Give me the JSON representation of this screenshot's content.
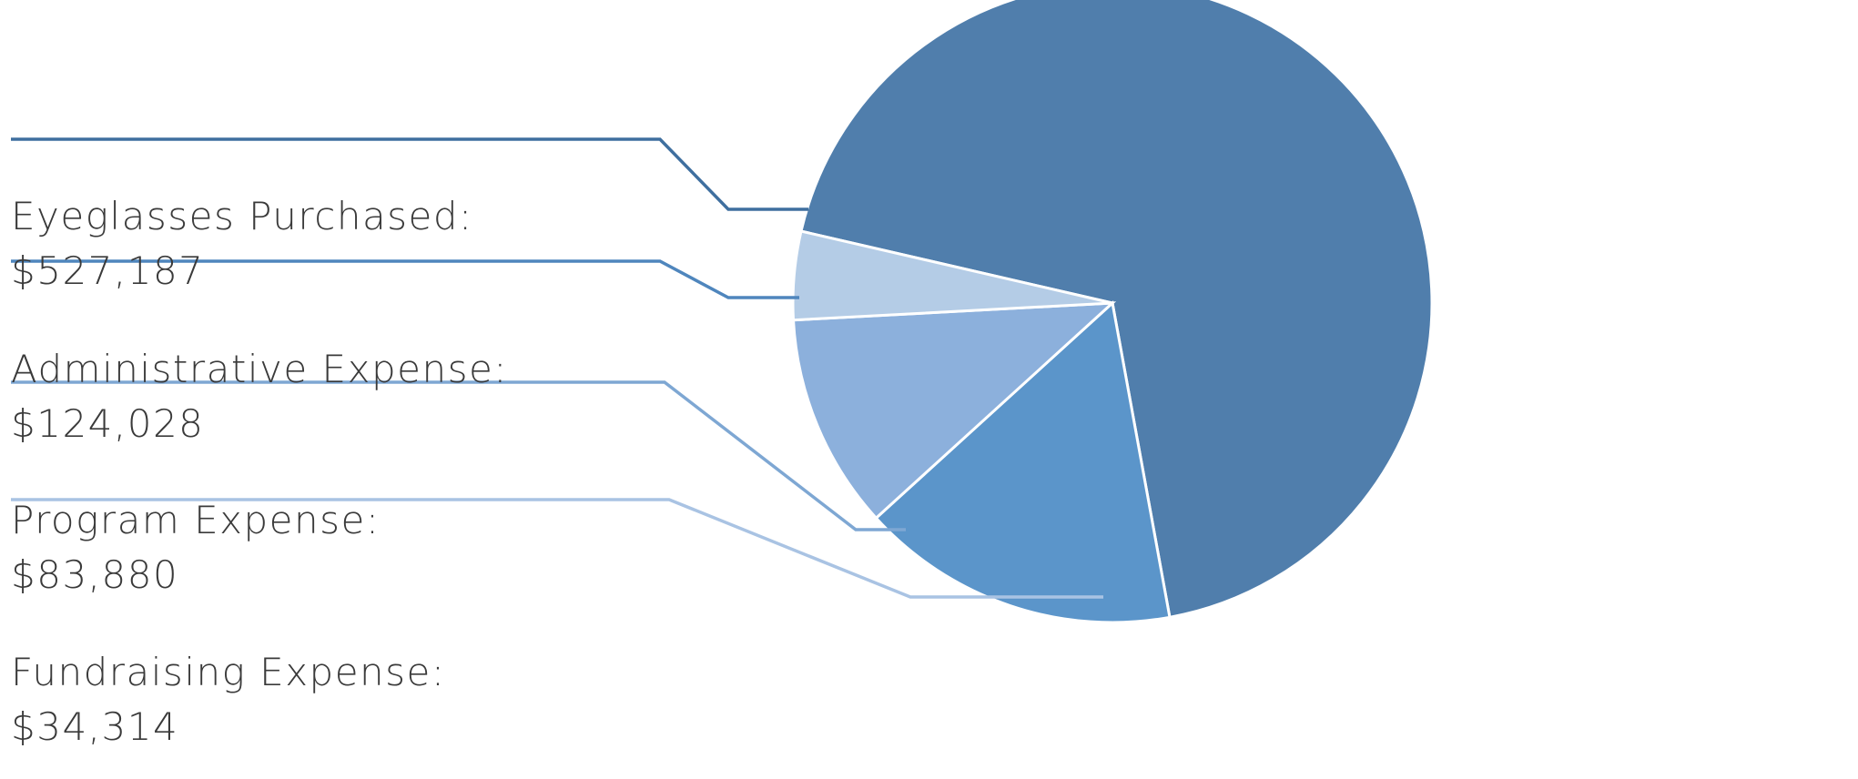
{
  "chart_data": {
    "type": "pie",
    "title": "",
    "slices": [
      {
        "label": "Eyeglasses Purchased:",
        "value_text": "$527,187",
        "value": 527187,
        "color": "#507eac"
      },
      {
        "label": "Administrative Expense:",
        "value_text": "$124,028",
        "value": 124028,
        "color": "#5b95ca"
      },
      {
        "label": "Program Expense:",
        "value_text": "$83,880",
        "value": 83880,
        "color": "#8cb0dc"
      },
      {
        "label": "Fundraising Expense:",
        "value_text": "$34,314",
        "value": 34314,
        "color": "#b4cce6"
      }
    ],
    "legend": "left",
    "leader_colors": [
      "#3f6f9f",
      "#4f86bd",
      "#7ea7d3",
      "#a9c3e3"
    ]
  }
}
